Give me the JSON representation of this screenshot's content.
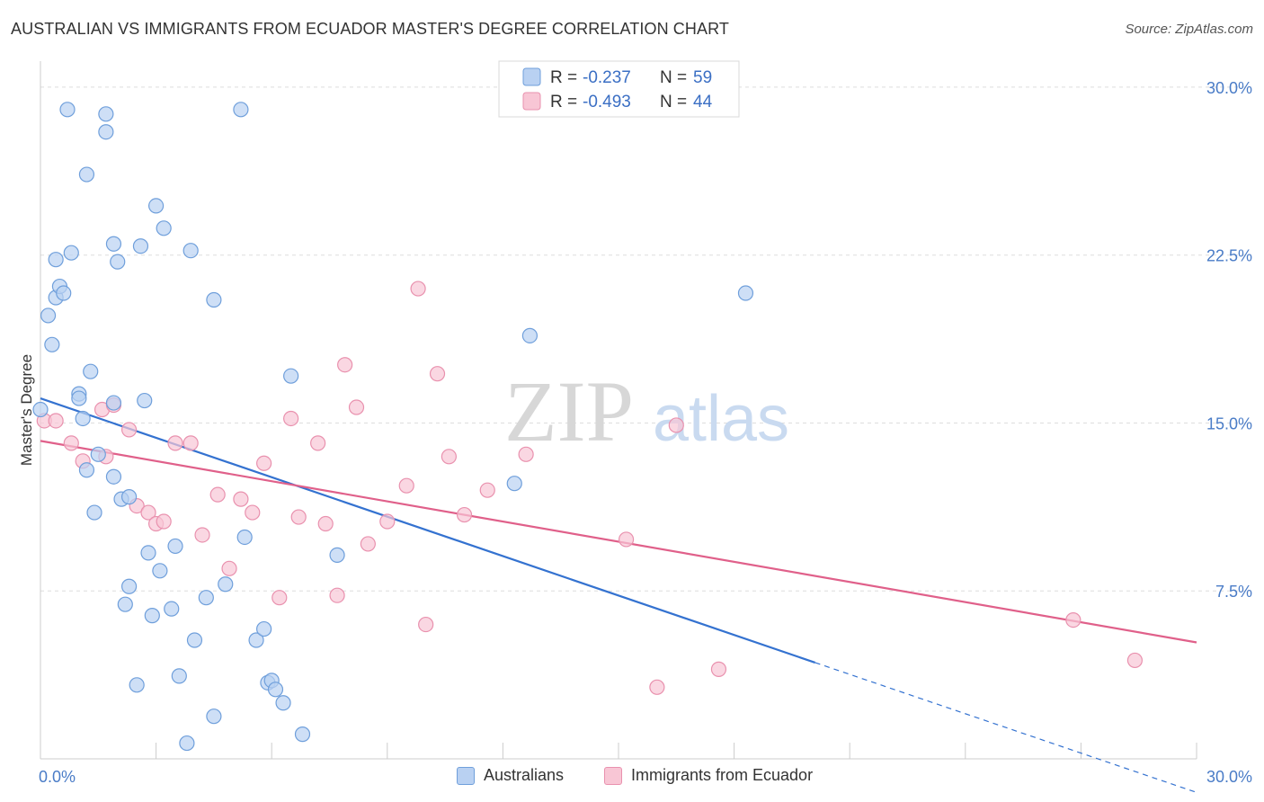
{
  "header": {
    "title": "AUSTRALIAN VS IMMIGRANTS FROM ECUADOR MASTER'S DEGREE CORRELATION CHART",
    "source": "Source: ZipAtlas.com"
  },
  "watermark": {
    "zip": "ZIP",
    "atlas": "atlas"
  },
  "colors": {
    "blue_fill": "#b9d1f2",
    "blue_stroke": "#6f9fdb",
    "blue_line": "#3472d0",
    "pink_fill": "#f8c6d5",
    "pink_stroke": "#e991ae",
    "pink_line": "#e0608a",
    "axis_label": "#4a7cc7",
    "grid": "#dddddd"
  },
  "legend_top": {
    "rows": [
      {
        "r_label": "R =",
        "r_value": "-0.237",
        "n_label": "N =",
        "n_value": "59"
      },
      {
        "r_label": "R =",
        "r_value": "-0.493",
        "n_label": "N =",
        "n_value": "44"
      }
    ]
  },
  "legend_bottom": {
    "items": [
      {
        "label": "Australians"
      },
      {
        "label": "Immigrants from Ecuador"
      }
    ]
  },
  "chart_data": {
    "type": "scatter",
    "xlabel": "",
    "ylabel": "Master's Degree",
    "xlim": [
      0,
      30
    ],
    "ylim": [
      0,
      30.8
    ],
    "x_tick_labels": [
      "0.0%",
      "30.0%"
    ],
    "y_ticks": [
      {
        "value": 7.5,
        "label": "7.5%"
      },
      {
        "value": 15.0,
        "label": "15.0%"
      },
      {
        "value": 22.5,
        "label": "22.5%"
      },
      {
        "value": 30.0,
        "label": "30.0%"
      }
    ],
    "grid": "horizontal dashed",
    "series": [
      {
        "name": "Australians",
        "r": -0.237,
        "n": 59,
        "trend": {
          "x0": 0,
          "y0": 16.1,
          "x1": 20.1,
          "y1": 4.3,
          "dash_to_x": 30,
          "dash_to_y": -1.5
        },
        "points": [
          [
            0.0,
            15.6
          ],
          [
            0.2,
            19.8
          ],
          [
            0.3,
            18.5
          ],
          [
            0.4,
            22.3
          ],
          [
            0.4,
            20.6
          ],
          [
            0.5,
            21.1
          ],
          [
            0.6,
            20.8
          ],
          [
            0.7,
            29.0
          ],
          [
            0.8,
            22.6
          ],
          [
            1.0,
            16.3
          ],
          [
            1.0,
            16.1
          ],
          [
            1.1,
            15.2
          ],
          [
            1.2,
            12.9
          ],
          [
            1.2,
            26.1
          ],
          [
            1.3,
            17.3
          ],
          [
            1.4,
            11.0
          ],
          [
            1.5,
            13.6
          ],
          [
            1.7,
            28.0
          ],
          [
            1.7,
            28.8
          ],
          [
            1.9,
            12.6
          ],
          [
            1.9,
            23.0
          ],
          [
            1.9,
            15.9
          ],
          [
            2.0,
            22.2
          ],
          [
            2.1,
            11.6
          ],
          [
            2.2,
            6.9
          ],
          [
            2.3,
            11.7
          ],
          [
            2.3,
            7.7
          ],
          [
            2.5,
            3.3
          ],
          [
            2.6,
            22.9
          ],
          [
            2.7,
            16.0
          ],
          [
            2.8,
            9.2
          ],
          [
            2.9,
            6.4
          ],
          [
            3.0,
            24.7
          ],
          [
            3.1,
            8.4
          ],
          [
            3.2,
            23.7
          ],
          [
            3.4,
            6.7
          ],
          [
            3.5,
            9.5
          ],
          [
            3.6,
            3.7
          ],
          [
            3.8,
            0.7
          ],
          [
            3.9,
            22.7
          ],
          [
            4.0,
            5.3
          ],
          [
            4.3,
            7.2
          ],
          [
            4.5,
            20.5
          ],
          [
            4.5,
            1.9
          ],
          [
            4.8,
            7.8
          ],
          [
            5.2,
            29.0
          ],
          [
            5.3,
            9.9
          ],
          [
            5.6,
            5.3
          ],
          [
            5.8,
            5.8
          ],
          [
            5.9,
            3.4
          ],
          [
            6.0,
            3.5
          ],
          [
            6.1,
            3.1
          ],
          [
            6.3,
            2.5
          ],
          [
            6.5,
            17.1
          ],
          [
            6.8,
            1.1
          ],
          [
            7.7,
            9.1
          ],
          [
            12.3,
            12.3
          ],
          [
            12.7,
            18.9
          ],
          [
            18.3,
            20.8
          ]
        ]
      },
      {
        "name": "Immigrants from Ecuador",
        "r": -0.493,
        "n": 44,
        "trend": {
          "x0": 0,
          "y0": 14.2,
          "x1": 30,
          "y1": 5.2
        },
        "points": [
          [
            0.1,
            15.1
          ],
          [
            0.4,
            15.1
          ],
          [
            0.8,
            14.1
          ],
          [
            1.1,
            13.3
          ],
          [
            1.6,
            15.6
          ],
          [
            1.7,
            13.5
          ],
          [
            1.9,
            15.8
          ],
          [
            2.3,
            14.7
          ],
          [
            2.5,
            11.3
          ],
          [
            2.8,
            11.0
          ],
          [
            3.0,
            10.5
          ],
          [
            3.2,
            10.6
          ],
          [
            3.5,
            14.1
          ],
          [
            3.9,
            14.1
          ],
          [
            4.2,
            10.0
          ],
          [
            4.6,
            11.8
          ],
          [
            4.9,
            8.5
          ],
          [
            5.2,
            11.6
          ],
          [
            5.5,
            11.0
          ],
          [
            5.8,
            13.2
          ],
          [
            6.2,
            7.2
          ],
          [
            6.5,
            15.2
          ],
          [
            6.7,
            10.8
          ],
          [
            7.2,
            14.1
          ],
          [
            7.4,
            10.5
          ],
          [
            7.7,
            7.3
          ],
          [
            7.9,
            17.6
          ],
          [
            8.2,
            15.7
          ],
          [
            8.5,
            9.6
          ],
          [
            9.0,
            10.6
          ],
          [
            9.5,
            12.2
          ],
          [
            9.8,
            21.0
          ],
          [
            10.0,
            6.0
          ],
          [
            10.3,
            17.2
          ],
          [
            10.6,
            13.5
          ],
          [
            11.0,
            10.9
          ],
          [
            11.6,
            12.0
          ],
          [
            12.6,
            13.6
          ],
          [
            15.2,
            9.8
          ],
          [
            16.0,
            3.2
          ],
          [
            16.5,
            14.9
          ],
          [
            17.6,
            4.0
          ],
          [
            26.8,
            6.2
          ],
          [
            28.4,
            4.4
          ]
        ]
      }
    ]
  }
}
